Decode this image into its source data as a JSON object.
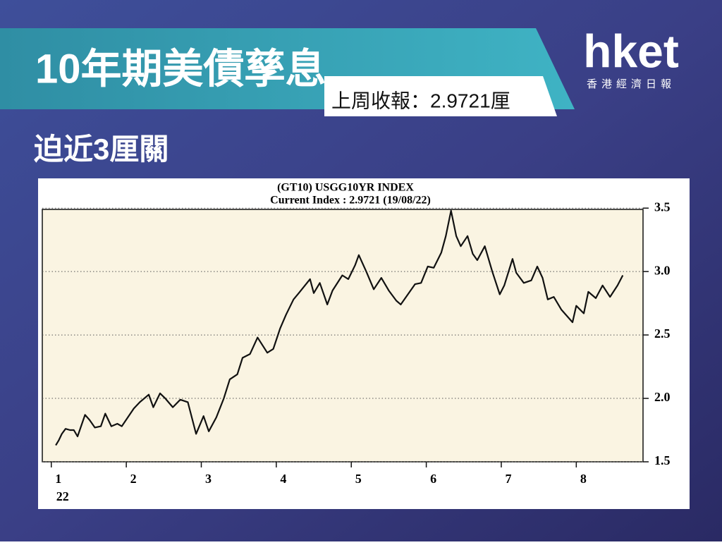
{
  "header": {
    "title": "10年期美債孳息",
    "subtitle": "上周收報：2.9721厘",
    "headline": "迫近3厘關",
    "logo": "hket",
    "logo_caption": "香港經濟日報"
  },
  "chart_data": {
    "type": "line",
    "title": "(GT10) USGG10YR INDEX",
    "subtitle": "Current Index : 2.9721 (19/08/22)",
    "x": [
      1.06,
      1.1,
      1.14,
      1.19,
      1.25,
      1.3,
      1.35,
      1.45,
      1.51,
      1.58,
      1.66,
      1.72,
      1.8,
      1.88,
      1.94,
      2.1,
      2.18,
      2.3,
      2.36,
      2.45,
      2.52,
      2.62,
      2.72,
      2.82,
      2.93,
      3.03,
      3.1,
      3.2,
      3.3,
      3.38,
      3.48,
      3.55,
      3.65,
      3.75,
      3.88,
      3.96,
      4.05,
      4.13,
      4.23,
      4.3,
      4.45,
      4.5,
      4.58,
      4.68,
      4.75,
      4.88,
      4.96,
      5.05,
      5.1,
      5.2,
      5.3,
      5.4,
      5.5,
      5.6,
      5.66,
      5.85,
      5.93,
      6.02,
      6.1,
      6.2,
      6.26,
      6.33,
      6.4,
      6.46,
      6.55,
      6.62,
      6.68,
      6.78,
      6.88,
      6.98,
      7.04,
      7.15,
      7.2,
      7.3,
      7.4,
      7.48,
      7.55,
      7.62,
      7.7,
      7.8,
      7.95,
      8.0,
      8.1,
      8.16,
      8.26,
      8.35,
      8.45,
      8.55,
      8.62
    ],
    "values": [
      1.63,
      1.67,
      1.72,
      1.76,
      1.75,
      1.75,
      1.7,
      1.87,
      1.83,
      1.77,
      1.78,
      1.88,
      1.78,
      1.8,
      1.78,
      1.92,
      1.97,
      2.03,
      1.93,
      2.04,
      2.0,
      1.93,
      1.99,
      1.97,
      1.72,
      1.86,
      1.74,
      1.85,
      2.0,
      2.15,
      2.19,
      2.32,
      2.35,
      2.48,
      2.36,
      2.39,
      2.55,
      2.66,
      2.78,
      2.83,
      2.94,
      2.83,
      2.91,
      2.74,
      2.85,
      2.97,
      2.94,
      3.05,
      3.13,
      3.0,
      2.86,
      2.95,
      2.85,
      2.77,
      2.74,
      2.9,
      2.91,
      3.04,
      3.03,
      3.15,
      3.28,
      3.48,
      3.28,
      3.2,
      3.28,
      3.14,
      3.09,
      3.2,
      3.0,
      2.82,
      2.89,
      3.1,
      2.99,
      2.91,
      2.93,
      3.04,
      2.95,
      2.78,
      2.8,
      2.7,
      2.6,
      2.73,
      2.67,
      2.84,
      2.79,
      2.89,
      2.8,
      2.89,
      2.97
    ],
    "color": "#111111",
    "xlim": [
      0.88,
      8.89
    ],
    "xticks": [
      1,
      2,
      3,
      4,
      5,
      6,
      7,
      8
    ],
    "x_year_label": "22",
    "ylim": [
      1.5,
      3.49
    ],
    "yticks": [
      {
        "value": 3.5,
        "label": "3.5"
      },
      {
        "value": 3,
        "label": "3.0"
      },
      2.5,
      {
        "value": 2,
        "label": "2.0"
      },
      1.5
    ],
    "grid": true
  }
}
